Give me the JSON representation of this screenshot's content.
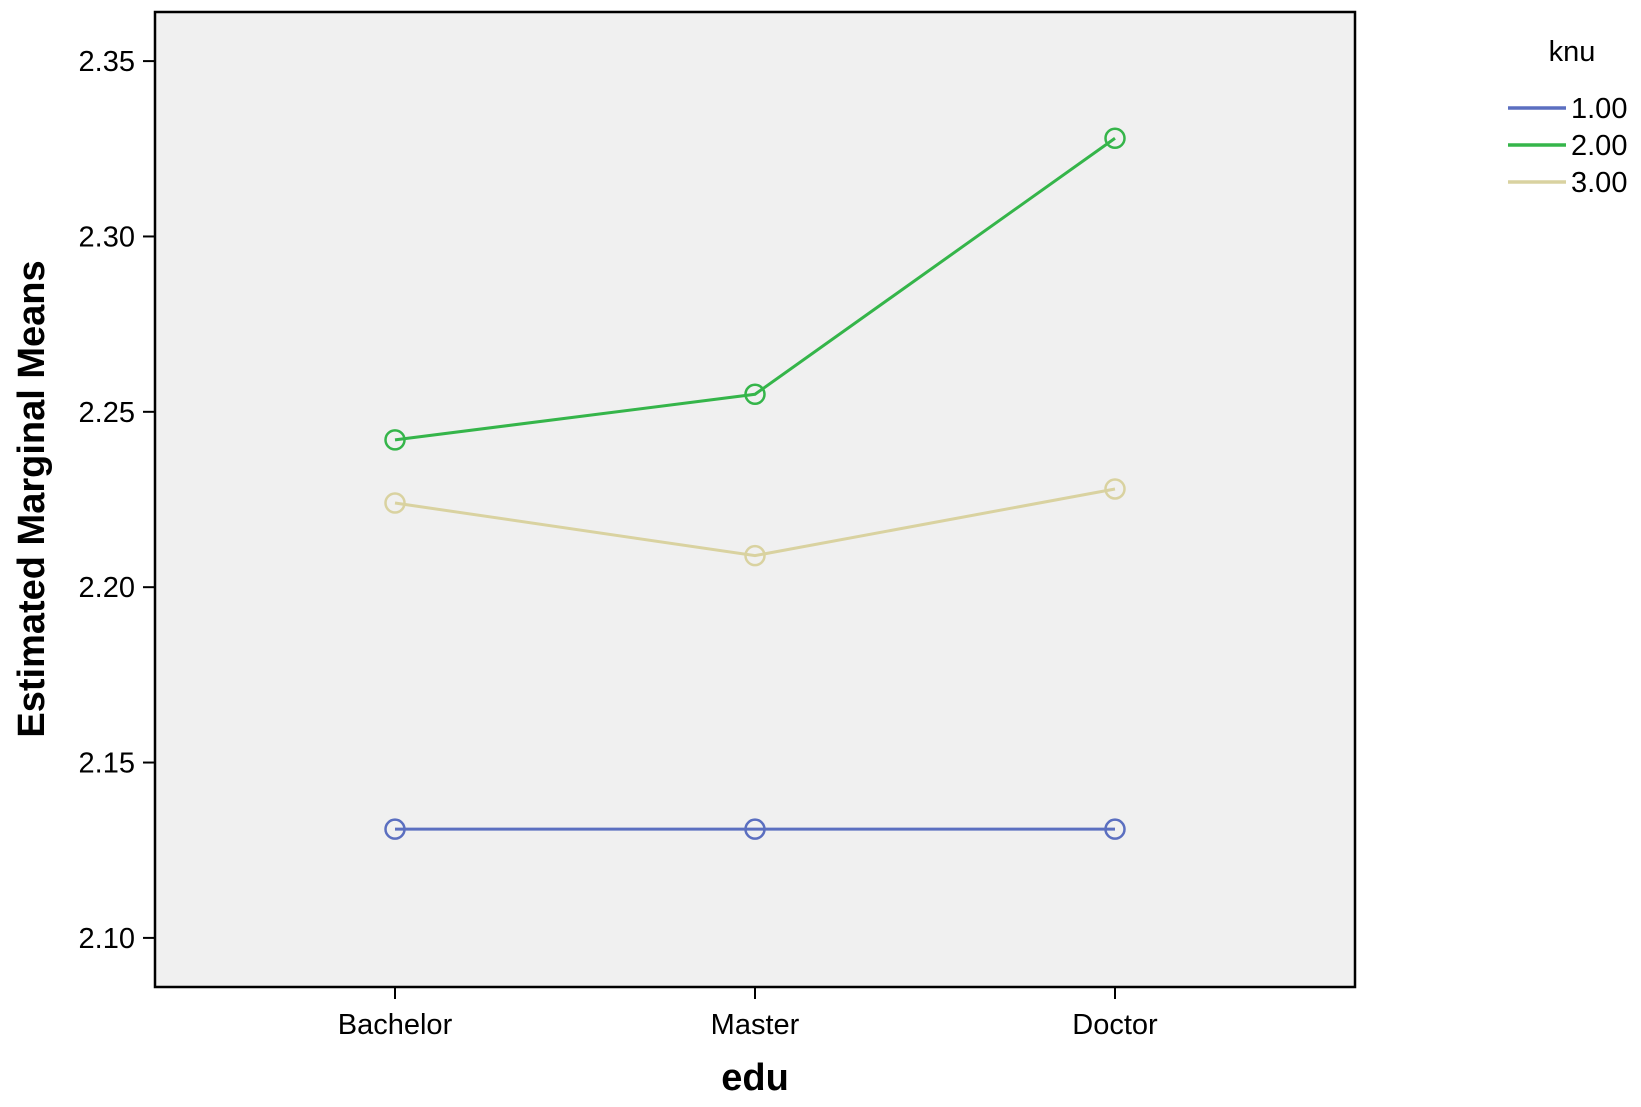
{
  "chart_data": {
    "type": "line",
    "title": "",
    "xlabel": "edu",
    "ylabel": "Estimated Marginal Means",
    "categories": [
      "Bachelor",
      "Master",
      "Doctor"
    ],
    "ylim": [
      2.086,
      2.364
    ],
    "yticks": [
      2.1,
      2.15,
      2.2,
      2.25,
      2.3,
      2.35
    ],
    "ytick_labels": [
      "2.10",
      "2.15",
      "2.20",
      "2.25",
      "2.30",
      "2.35"
    ],
    "grid": false,
    "legend": {
      "title": "knu",
      "placement": "top-right, outside plot"
    },
    "series": [
      {
        "name": "1.00",
        "color": "#5b6fc0",
        "values": [
          2.131,
          2.131,
          2.131
        ]
      },
      {
        "name": "2.00",
        "color": "#35b54a",
        "values": [
          2.242,
          2.255,
          2.328
        ]
      },
      {
        "name": "3.00",
        "color": "#d9d2a0",
        "values": [
          2.224,
          2.209,
          2.228
        ]
      }
    ],
    "marker": "open-circle",
    "plot_background": "#f0f0f0"
  }
}
